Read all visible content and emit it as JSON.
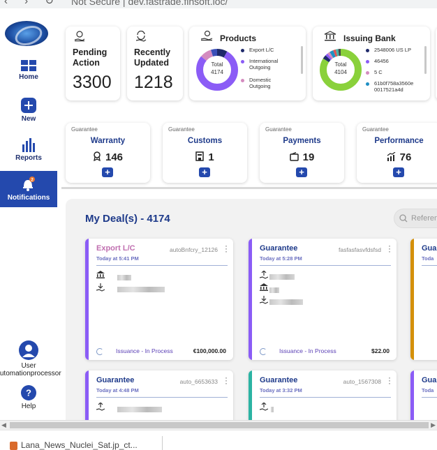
{
  "browser": {
    "nav_glyphs": "‹ › ↻",
    "url": "Not Secure  |  dev.fastrade.finsoft.loc/"
  },
  "sidebar": {
    "items": [
      {
        "label": "Home",
        "icon": "home-grid-icon"
      },
      {
        "label": "New",
        "icon": "plus-circle-icon"
      },
      {
        "label": "Reports",
        "icon": "bar-chart-icon"
      },
      {
        "label": "Notifications",
        "icon": "bell-icon",
        "badge": "2",
        "active": true
      }
    ],
    "user": {
      "label": "User",
      "name": "automationprocessor"
    },
    "help": "Help"
  },
  "stats": [
    {
      "label": "Pending Action",
      "value": "3300",
      "icon": "hand-coin-icon"
    },
    {
      "label": "Recently Updated",
      "value": "1218",
      "icon": "refresh-coin-icon"
    }
  ],
  "products": {
    "title": "Products",
    "total_label": "Total",
    "total": "4174",
    "legend": [
      {
        "label": "Export L/C",
        "color": "#1f2a6b"
      },
      {
        "label": "International Outgoing",
        "color": "#8b5cf6"
      },
      {
        "label": "Domestic Outgoing",
        "color": "#d48bbf"
      }
    ],
    "slices": [
      {
        "label": "Export L/C",
        "value": 8,
        "color": "#1f2a6b"
      },
      {
        "label": "International Outgoing",
        "value": 78,
        "color": "#8b5cf6"
      },
      {
        "label": "Domestic Outgoing",
        "value": 9,
        "color": "#d48bbf"
      },
      {
        "label": "other",
        "value": 5,
        "color": "#3b4fb8"
      }
    ]
  },
  "issuing_bank": {
    "title": "Issuing Bank",
    "total_label": "Total",
    "total": "4104",
    "legend": [
      {
        "label": "2548006 US LP",
        "color": "#1f2a6b"
      },
      {
        "label": "46456",
        "color": "#8b5cf6"
      },
      {
        "label": "5 C",
        "color": "#d48bbf"
      },
      {
        "label": "61b0f758a3560e0017521a4d",
        "color": "#1f8fc4"
      }
    ],
    "slices": [
      {
        "label": "green",
        "value": 84,
        "color": "#8ad13b"
      },
      {
        "label": "2548006 US LP",
        "value": 3,
        "color": "#1f2a6b"
      },
      {
        "label": "46456",
        "value": 2,
        "color": "#8b5cf6"
      },
      {
        "label": "5 C",
        "value": 2,
        "color": "#d48bbf"
      },
      {
        "label": "61b0f758a3560e0017521a4d",
        "value": 3,
        "color": "#1f8fc4"
      },
      {
        "label": "red",
        "value": 2,
        "color": "#e05252"
      },
      {
        "label": "teal",
        "value": 2,
        "color": "#4ab3a8"
      },
      {
        "label": "dark",
        "value": 2,
        "color": "#444444"
      }
    ]
  },
  "guarantees": [
    {
      "category": "Guarantee",
      "name": "Warranty",
      "count": "146",
      "icon": "award-icon"
    },
    {
      "category": "Guarantee",
      "name": "Customs",
      "count": "1",
      "icon": "building-icon"
    },
    {
      "category": "Guarantee",
      "name": "Payments",
      "count": "19",
      "icon": "wallet-icon"
    },
    {
      "category": "Guarantee",
      "name": "Performance",
      "count": "76",
      "icon": "trend-chart-icon"
    }
  ],
  "deals": {
    "title": "My Deal(s) - 4174",
    "search_placeholder": "Reference",
    "add_symbol": "+",
    "items": [
      {
        "type": "Export L/C",
        "type_color": "#c06fb0",
        "bar": "#8b5cf6",
        "id": "autoBnfcry_12126",
        "time": "Today at 5:41 PM",
        "status": "Issuance - In Process",
        "amount": "€100,000.00"
      },
      {
        "type": "Guarantee",
        "type_color": "#1e3a8a",
        "bar": "#8b5cf6",
        "id": "fasfasfasvfdsfsd",
        "time": "Today at 5:28 PM",
        "status": "Issuance - In Process",
        "amount": "$22.00"
      },
      {
        "type": "Gua",
        "type_color": "#1e3a8a",
        "bar": "#d4900a",
        "id": "",
        "time": "Toda",
        "status": "",
        "amount": ""
      },
      {
        "type": "Guarantee",
        "type_color": "#1e3a8a",
        "bar": "#8b5cf6",
        "id": "auto_6653633",
        "time": "Today at 4:48 PM",
        "status": "",
        "amount": ""
      },
      {
        "type": "Guarantee",
        "type_color": "#1e3a8a",
        "bar": "#2bb3a3",
        "id": "auto_1567308",
        "time": "Today at 3:32 PM",
        "status": "",
        "amount": ""
      },
      {
        "type": "Gua",
        "type_color": "#1e3a8a",
        "bar": "#8b5cf6",
        "id": "",
        "time": "Toda",
        "status": "",
        "amount": ""
      }
    ]
  },
  "footer": {
    "tab_label": "Lana_News_Nuclei_Sat.jp_ct..."
  }
}
